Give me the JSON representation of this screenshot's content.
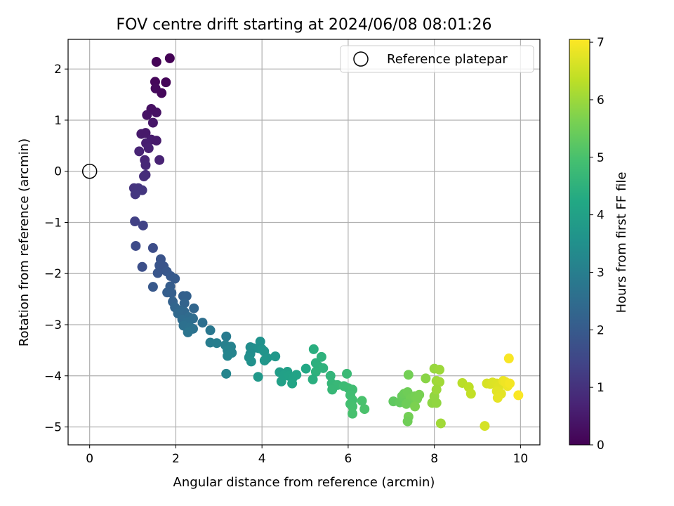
{
  "chart_data": {
    "type": "scatter",
    "title": "FOV centre drift starting at 2024/06/08 08:01:26",
    "xlabel": "Angular distance from reference (arcmin)",
    "ylabel": "Rotation from reference (arcmin)",
    "xlim": [
      -0.5,
      10.45
    ],
    "ylim": [
      -5.35,
      2.58
    ],
    "xticks": [
      0,
      2,
      4,
      6,
      8,
      10
    ],
    "xtick_labels": [
      "0",
      "2",
      "4",
      "6",
      "8",
      "10"
    ],
    "yticks": [
      -5,
      -4,
      -3,
      -2,
      -1,
      0,
      1,
      2
    ],
    "ytick_labels": [
      "−5",
      "−4",
      "−3",
      "−2",
      "−1",
      "0",
      "1",
      "2"
    ],
    "grid": true,
    "legend": {
      "location": "upper right",
      "entries": [
        {
          "label": "Reference platepar",
          "marker": "open-circle"
        }
      ]
    },
    "reference_point": {
      "x": 0,
      "y": 0
    },
    "colorbar": {
      "label": "Hours from first FF file",
      "colormap": "viridis",
      "range": [
        0,
        7.05
      ],
      "ticks": [
        0,
        1,
        2,
        3,
        4,
        5,
        6,
        7
      ],
      "tick_labels": [
        "0",
        "1",
        "2",
        "3",
        "4",
        "5",
        "6",
        "7"
      ]
    },
    "series": [
      {
        "points": [
          {
            "x": 1.55,
            "y": 2.14,
            "t": 0.05
          },
          {
            "x": 1.86,
            "y": 2.21,
            "t": 0.02
          },
          {
            "x": 1.52,
            "y": 1.75,
            "t": 0.12
          },
          {
            "x": 1.77,
            "y": 1.74,
            "t": 0.08
          },
          {
            "x": 1.53,
            "y": 1.62,
            "t": 0.18
          },
          {
            "x": 1.67,
            "y": 1.53,
            "t": 0.15
          },
          {
            "x": 1.43,
            "y": 1.22,
            "t": 0.3
          },
          {
            "x": 1.55,
            "y": 1.15,
            "t": 0.32
          },
          {
            "x": 1.33,
            "y": 1.1,
            "t": 0.35
          },
          {
            "x": 1.47,
            "y": 0.95,
            "t": 0.42
          },
          {
            "x": 1.2,
            "y": 0.73,
            "t": 0.5
          },
          {
            "x": 1.3,
            "y": 0.75,
            "t": 0.48
          },
          {
            "x": 1.43,
            "y": 0.62,
            "t": 0.55
          },
          {
            "x": 1.55,
            "y": 0.6,
            "t": 0.52
          },
          {
            "x": 1.31,
            "y": 0.55,
            "t": 0.6
          },
          {
            "x": 1.37,
            "y": 0.45,
            "t": 0.65
          },
          {
            "x": 1.15,
            "y": 0.39,
            "t": 0.7
          },
          {
            "x": 1.62,
            "y": 0.22,
            "t": 0.68
          },
          {
            "x": 1.28,
            "y": 0.22,
            "t": 0.75
          },
          {
            "x": 1.3,
            "y": 0.12,
            "t": 0.8
          },
          {
            "x": 1.3,
            "y": -0.07,
            "t": 0.88
          },
          {
            "x": 1.26,
            "y": -0.1,
            "t": 0.9
          },
          {
            "x": 1.03,
            "y": -0.33,
            "t": 1.05
          },
          {
            "x": 1.13,
            "y": -0.33,
            "t": 1.08
          },
          {
            "x": 1.22,
            "y": -0.37,
            "t": 1.1
          },
          {
            "x": 1.06,
            "y": -0.45,
            "t": 1.12
          },
          {
            "x": 1.05,
            "y": -0.98,
            "t": 1.35
          },
          {
            "x": 1.24,
            "y": -1.06,
            "t": 1.38
          },
          {
            "x": 1.07,
            "y": -1.46,
            "t": 1.6
          },
          {
            "x": 1.47,
            "y": -1.5,
            "t": 1.65
          },
          {
            "x": 1.65,
            "y": -1.72,
            "t": 1.8
          },
          {
            "x": 1.62,
            "y": -1.84,
            "t": 1.85
          },
          {
            "x": 1.72,
            "y": -1.86,
            "t": 1.82
          },
          {
            "x": 1.22,
            "y": -1.87,
            "t": 1.7
          },
          {
            "x": 1.79,
            "y": -1.96,
            "t": 1.9
          },
          {
            "x": 1.58,
            "y": -1.99,
            "t": 1.88
          },
          {
            "x": 1.88,
            "y": -2.05,
            "t": 1.95
          },
          {
            "x": 1.98,
            "y": -2.1,
            "t": 2.0
          },
          {
            "x": 1.47,
            "y": -2.26,
            "t": 1.92
          },
          {
            "x": 1.87,
            "y": -2.25,
            "t": 2.05
          },
          {
            "x": 1.8,
            "y": -2.37,
            "t": 2.1
          },
          {
            "x": 1.9,
            "y": -2.38,
            "t": 2.12
          },
          {
            "x": 2.17,
            "y": -2.44,
            "t": 2.15
          },
          {
            "x": 2.25,
            "y": -2.44,
            "t": 2.18
          },
          {
            "x": 1.93,
            "y": -2.55,
            "t": 2.2
          },
          {
            "x": 2.2,
            "y": -2.58,
            "t": 2.25
          },
          {
            "x": 1.98,
            "y": -2.66,
            "t": 2.28
          },
          {
            "x": 2.42,
            "y": -2.68,
            "t": 2.3
          },
          {
            "x": 2.1,
            "y": -2.72,
            "t": 2.35
          },
          {
            "x": 2.2,
            "y": -2.75,
            "t": 2.38
          },
          {
            "x": 2.05,
            "y": -2.78,
            "t": 2.4
          },
          {
            "x": 2.3,
            "y": -2.85,
            "t": 2.45
          },
          {
            "x": 2.4,
            "y": -2.88,
            "t": 2.5
          },
          {
            "x": 2.15,
            "y": -2.9,
            "t": 2.48
          },
          {
            "x": 2.25,
            "y": -2.95,
            "t": 2.55
          },
          {
            "x": 2.62,
            "y": -2.96,
            "t": 2.58
          },
          {
            "x": 2.18,
            "y": -3.02,
            "t": 2.6
          },
          {
            "x": 2.33,
            "y": -3.05,
            "t": 2.62
          },
          {
            "x": 2.4,
            "y": -3.08,
            "t": 2.65
          },
          {
            "x": 2.28,
            "y": -3.15,
            "t": 2.7
          },
          {
            "x": 2.8,
            "y": -3.11,
            "t": 2.8
          },
          {
            "x": 3.17,
            "y": -3.23,
            "t": 2.9
          },
          {
            "x": 2.8,
            "y": -3.35,
            "t": 2.95
          },
          {
            "x": 2.95,
            "y": -3.36,
            "t": 3.0
          },
          {
            "x": 3.15,
            "y": -3.4,
            "t": 3.05
          },
          {
            "x": 3.28,
            "y": -3.43,
            "t": 3.1
          },
          {
            "x": 3.2,
            "y": -3.5,
            "t": 3.12
          },
          {
            "x": 3.3,
            "y": -3.55,
            "t": 3.15
          },
          {
            "x": 3.2,
            "y": -3.61,
            "t": 3.18
          },
          {
            "x": 3.17,
            "y": -3.96,
            "t": 3.2
          },
          {
            "x": 3.73,
            "y": -3.44,
            "t": 3.4
          },
          {
            "x": 3.8,
            "y": -3.46,
            "t": 3.45
          },
          {
            "x": 3.96,
            "y": -3.33,
            "t": 3.55
          },
          {
            "x": 3.92,
            "y": -3.46,
            "t": 3.5
          },
          {
            "x": 4.0,
            "y": -3.48,
            "t": 3.6
          },
          {
            "x": 4.05,
            "y": -3.52,
            "t": 3.62
          },
          {
            "x": 3.73,
            "y": -3.57,
            "t": 3.42
          },
          {
            "x": 3.7,
            "y": -3.64,
            "t": 3.48
          },
          {
            "x": 3.75,
            "y": -3.72,
            "t": 3.52
          },
          {
            "x": 4.12,
            "y": -3.65,
            "t": 3.65
          },
          {
            "x": 4.06,
            "y": -3.7,
            "t": 3.68
          },
          {
            "x": 4.31,
            "y": -3.62,
            "t": 3.7
          },
          {
            "x": 3.91,
            "y": -4.02,
            "t": 3.75
          },
          {
            "x": 4.41,
            "y": -3.93,
            "t": 3.9
          },
          {
            "x": 4.59,
            "y": -3.92,
            "t": 3.95
          },
          {
            "x": 4.5,
            "y": -3.99,
            "t": 4.0
          },
          {
            "x": 4.62,
            "y": -4.0,
            "t": 4.02
          },
          {
            "x": 4.72,
            "y": -4.03,
            "t": 4.05
          },
          {
            "x": 4.8,
            "y": -3.98,
            "t": 4.08
          },
          {
            "x": 4.45,
            "y": -4.11,
            "t": 4.0
          },
          {
            "x": 4.7,
            "y": -4.15,
            "t": 4.1
          },
          {
            "x": 5.02,
            "y": -3.86,
            "t": 4.2
          },
          {
            "x": 5.2,
            "y": -3.48,
            "t": 4.4
          },
          {
            "x": 5.25,
            "y": -3.75,
            "t": 4.45
          },
          {
            "x": 5.38,
            "y": -3.63,
            "t": 4.5
          },
          {
            "x": 5.32,
            "y": -3.82,
            "t": 4.48
          },
          {
            "x": 5.42,
            "y": -3.85,
            "t": 4.52
          },
          {
            "x": 5.25,
            "y": -3.92,
            "t": 4.5
          },
          {
            "x": 5.18,
            "y": -4.07,
            "t": 4.42
          },
          {
            "x": 5.59,
            "y": -4.0,
            "t": 4.6
          },
          {
            "x": 5.62,
            "y": -4.15,
            "t": 4.65
          },
          {
            "x": 5.75,
            "y": -4.18,
            "t": 4.7
          },
          {
            "x": 5.63,
            "y": -4.27,
            "t": 4.68
          },
          {
            "x": 5.97,
            "y": -3.96,
            "t": 4.75
          },
          {
            "x": 5.9,
            "y": -4.2,
            "t": 4.8
          },
          {
            "x": 6.0,
            "y": -4.24,
            "t": 4.82
          },
          {
            "x": 6.1,
            "y": -4.27,
            "t": 4.85
          },
          {
            "x": 6.05,
            "y": -4.38,
            "t": 4.88
          },
          {
            "x": 6.1,
            "y": -4.47,
            "t": 4.9
          },
          {
            "x": 6.05,
            "y": -4.55,
            "t": 4.92
          },
          {
            "x": 6.1,
            "y": -4.6,
            "t": 4.95
          },
          {
            "x": 6.1,
            "y": -4.74,
            "t": 4.98
          },
          {
            "x": 6.32,
            "y": -4.49,
            "t": 5.0
          },
          {
            "x": 6.38,
            "y": -4.65,
            "t": 5.02
          },
          {
            "x": 7.05,
            "y": -4.5,
            "t": 5.3
          },
          {
            "x": 7.2,
            "y": -4.52,
            "t": 5.35
          },
          {
            "x": 7.25,
            "y": -4.4,
            "t": 5.4
          },
          {
            "x": 7.3,
            "y": -4.35,
            "t": 5.45
          },
          {
            "x": 7.38,
            "y": -4.32,
            "t": 5.5
          },
          {
            "x": 7.45,
            "y": -4.45,
            "t": 5.52
          },
          {
            "x": 7.35,
            "y": -4.55,
            "t": 5.48
          },
          {
            "x": 7.4,
            "y": -3.98,
            "t": 5.55
          },
          {
            "x": 7.55,
            "y": -4.4,
            "t": 5.58
          },
          {
            "x": 7.6,
            "y": -4.45,
            "t": 5.6
          },
          {
            "x": 7.65,
            "y": -4.37,
            "t": 5.62
          },
          {
            "x": 7.55,
            "y": -4.6,
            "t": 5.65
          },
          {
            "x": 7.4,
            "y": -4.8,
            "t": 5.55
          },
          {
            "x": 7.38,
            "y": -4.89,
            "t": 5.5
          },
          {
            "x": 7.8,
            "y": -4.05,
            "t": 5.8
          },
          {
            "x": 7.95,
            "y": -4.53,
            "t": 5.85
          },
          {
            "x": 8.0,
            "y": -4.4,
            "t": 5.9
          },
          {
            "x": 8.05,
            "y": -4.53,
            "t": 5.88
          },
          {
            "x": 8.0,
            "y": -3.86,
            "t": 5.95
          },
          {
            "x": 8.12,
            "y": -3.88,
            "t": 6.0
          },
          {
            "x": 8.05,
            "y": -4.1,
            "t": 6.02
          },
          {
            "x": 8.12,
            "y": -4.12,
            "t": 6.05
          },
          {
            "x": 8.05,
            "y": -4.27,
            "t": 6.0
          },
          {
            "x": 8.15,
            "y": -4.93,
            "t": 6.05
          },
          {
            "x": 8.65,
            "y": -4.14,
            "t": 6.3
          },
          {
            "x": 8.8,
            "y": -4.22,
            "t": 6.35
          },
          {
            "x": 8.85,
            "y": -4.35,
            "t": 6.4
          },
          {
            "x": 9.17,
            "y": -4.98,
            "t": 6.6
          },
          {
            "x": 9.22,
            "y": -4.15,
            "t": 6.62
          },
          {
            "x": 9.3,
            "y": -4.16,
            "t": 6.65
          },
          {
            "x": 9.35,
            "y": -4.13,
            "t": 6.68
          },
          {
            "x": 9.45,
            "y": -4.15,
            "t": 6.7
          },
          {
            "x": 9.5,
            "y": -4.2,
            "t": 6.72
          },
          {
            "x": 9.45,
            "y": -4.3,
            "t": 6.75
          },
          {
            "x": 9.55,
            "y": -4.35,
            "t": 6.78
          },
          {
            "x": 9.47,
            "y": -4.43,
            "t": 6.8
          },
          {
            "x": 9.6,
            "y": -4.1,
            "t": 6.85
          },
          {
            "x": 9.7,
            "y": -4.2,
            "t": 6.88
          },
          {
            "x": 9.65,
            "y": -4.12,
            "t": 6.9
          },
          {
            "x": 9.75,
            "y": -4.15,
            "t": 6.95
          },
          {
            "x": 9.73,
            "y": -3.66,
            "t": 7.0
          },
          {
            "x": 9.95,
            "y": -4.38,
            "t": 7.02
          }
        ]
      }
    ]
  }
}
